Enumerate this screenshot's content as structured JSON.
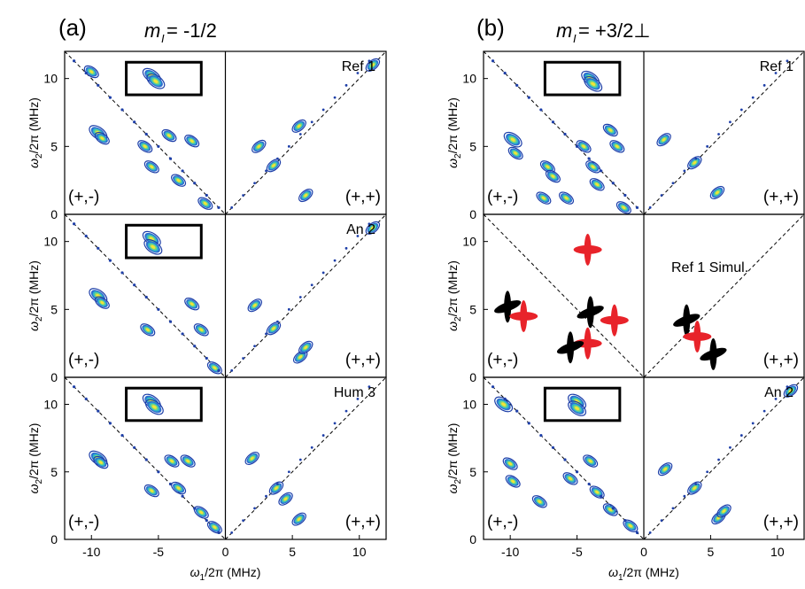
{
  "figure": {
    "columns": [
      {
        "letter": "(a)",
        "m_symbol": "m",
        "m_subscript": "I",
        "m_value": " = -1/2",
        "panels": [
          "Ref 1",
          "An 2",
          "Hum 3"
        ]
      },
      {
        "letter": "(b)",
        "m_symbol": "m",
        "m_subscript": "I",
        "m_value": " = +3/2⊥",
        "panels": [
          "Ref 1",
          "Ref 1 Simul.",
          "An 2"
        ]
      }
    ],
    "quadrant_left": "(+,-)",
    "quadrant_right": "(+,+)",
    "ylabel_symbol": "ω",
    "ylabel_sub": "2",
    "ylabel_rest": "/2π (MHz)",
    "xlabel_symbol": "ω",
    "xlabel_sub": "1",
    "xlabel_rest": "/2π (MHz)",
    "yticks": [
      "0",
      "5",
      "10"
    ],
    "xticks": [
      "-10",
      "-5",
      "0",
      "5",
      "10"
    ]
  },
  "chart_data": {
    "type": "heatmap",
    "description_kind": "HYSCORE contour plots",
    "xlim": [
      -12,
      12
    ],
    "ylim": [
      0,
      12
    ],
    "grid": false,
    "colors": {
      "contour_low": "#1e3fa8",
      "contour_mid": "#2fb8c8",
      "contour_high": "#f2e436",
      "sim_red": "#e8232a",
      "sim_black": "#000000"
    },
    "panels": [
      {
        "column": "a",
        "name": "Ref 1",
        "peaks": [
          [
            -5.5,
            10.2
          ],
          [
            -5.2,
            9.8
          ],
          [
            -9.5,
            6.0
          ],
          [
            -9.2,
            5.6
          ],
          [
            -5.5,
            3.5
          ],
          [
            -4.2,
            5.8
          ],
          [
            -2.5,
            5.4
          ],
          [
            -6.0,
            5.0
          ],
          [
            -1.5,
            0.8
          ],
          [
            -3.5,
            2.5
          ],
          [
            3.6,
            3.6
          ],
          [
            2.5,
            5.0
          ],
          [
            6.0,
            1.4
          ],
          [
            5.5,
            6.5
          ],
          [
            11.0,
            11.0
          ],
          [
            -10,
            10.5
          ]
        ]
      },
      {
        "column": "a",
        "name": "An 2",
        "peaks": [
          [
            -5.5,
            10.2
          ],
          [
            -5.4,
            9.6
          ],
          [
            -9.5,
            6.0
          ],
          [
            -9.2,
            5.5
          ],
          [
            -5.8,
            3.5
          ],
          [
            -2.5,
            5.4
          ],
          [
            -1.8,
            3.5
          ],
          [
            -0.8,
            0.7
          ],
          [
            3.6,
            3.6
          ],
          [
            2.2,
            5.3
          ],
          [
            5.6,
            1.5
          ],
          [
            6.0,
            2.2
          ],
          [
            11,
            11
          ]
        ]
      },
      {
        "column": "a",
        "name": "Hum 3",
        "peaks": [
          [
            -5.5,
            10.2
          ],
          [
            -5.3,
            9.8
          ],
          [
            -9.5,
            6.0
          ],
          [
            -9.3,
            5.7
          ],
          [
            -5.5,
            3.6
          ],
          [
            -4.0,
            5.8
          ],
          [
            -2.8,
            5.8
          ],
          [
            -3.5,
            3.8
          ],
          [
            -1.8,
            2.0
          ],
          [
            -0.8,
            0.9
          ],
          [
            3.8,
            3.8
          ],
          [
            2.0,
            6.0
          ],
          [
            5.5,
            1.5
          ],
          [
            4.5,
            3.0
          ]
        ]
      },
      {
        "column": "b",
        "name": "Ref 1",
        "peaks": [
          [
            -4.0,
            10.0
          ],
          [
            -3.8,
            9.6
          ],
          [
            -9.8,
            5.5
          ],
          [
            -9.6,
            4.5
          ],
          [
            -7.2,
            3.5
          ],
          [
            -6.8,
            2.8
          ],
          [
            -4.5,
            5.0
          ],
          [
            -2.5,
            6.2
          ],
          [
            -2.0,
            5.0
          ],
          [
            -3.8,
            3.5
          ],
          [
            -3.5,
            2.2
          ],
          [
            -5.8,
            1.2
          ],
          [
            -7.5,
            1.2
          ],
          [
            -1.5,
            0.5
          ],
          [
            3.8,
            3.8
          ],
          [
            5.5,
            1.6
          ],
          [
            1.5,
            5.5
          ]
        ]
      },
      {
        "column": "b",
        "name": "Ref 1 Simul.",
        "peaks": [
          [
            -4.2,
            9.4
          ],
          [
            -10.2,
            5.2
          ],
          [
            -9.0,
            4.5
          ],
          [
            -4.0,
            4.8
          ],
          [
            -4.2,
            2.5
          ],
          [
            -5.5,
            2.2
          ],
          [
            -2.2,
            4.2
          ],
          [
            3.2,
            4.2
          ],
          [
            4.0,
            3.0
          ],
          [
            5.2,
            1.7
          ]
        ],
        "series": [
          {
            "name": "red"
          },
          {
            "name": "black"
          }
        ]
      },
      {
        "column": "b",
        "name": "An 2",
        "peaks": [
          [
            -5.0,
            10.2
          ],
          [
            -5.0,
            9.7
          ],
          [
            -10.5,
            10.0
          ],
          [
            -10.0,
            5.6
          ],
          [
            -9.8,
            4.3
          ],
          [
            -7.8,
            2.8
          ],
          [
            -5.5,
            4.5
          ],
          [
            -4.0,
            5.8
          ],
          [
            -3.5,
            3.5
          ],
          [
            -2.5,
            2.2
          ],
          [
            -1.0,
            1.0
          ],
          [
            3.8,
            3.8
          ],
          [
            1.6,
            5.2
          ],
          [
            5.6,
            1.6
          ],
          [
            6.0,
            2.1
          ],
          [
            11,
            11
          ]
        ]
      }
    ]
  }
}
